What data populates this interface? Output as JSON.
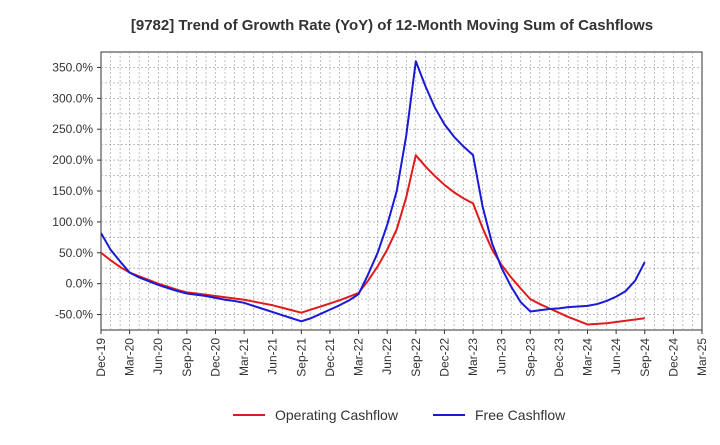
{
  "chart_data": {
    "type": "line",
    "title": "[9782]  Trend of Growth Rate (YoY) of 12-Month Moving Sum of Cashflows",
    "xlabel": "",
    "ylabel": "",
    "categories": [
      "Dec-19",
      "Jan-20",
      "Feb-20",
      "Mar-20",
      "Apr-20",
      "May-20",
      "Jun-20",
      "Jul-20",
      "Aug-20",
      "Sep-20",
      "Oct-20",
      "Nov-20",
      "Dec-20",
      "Jan-21",
      "Feb-21",
      "Mar-21",
      "Apr-21",
      "May-21",
      "Jun-21",
      "Jul-21",
      "Aug-21",
      "Sep-21",
      "Oct-21",
      "Nov-21",
      "Dec-21",
      "Jan-22",
      "Feb-22",
      "Mar-22",
      "Apr-22",
      "May-22",
      "Jun-22",
      "Jul-22",
      "Aug-22",
      "Sep-22",
      "Oct-22",
      "Nov-22",
      "Dec-22",
      "Jan-23",
      "Feb-23",
      "Mar-23",
      "Apr-23",
      "May-23",
      "Jun-23",
      "Jul-23",
      "Aug-23",
      "Sep-23",
      "Oct-23",
      "Nov-23",
      "Dec-23",
      "Jan-24",
      "Feb-24",
      "Mar-24",
      "Apr-24",
      "May-24",
      "Jun-24",
      "Jul-24",
      "Aug-24",
      "Sep-24",
      "Oct-24",
      "Nov-24",
      "Dec-24",
      "Jan-25",
      "Feb-25",
      "Mar-25"
    ],
    "x_tick_labels": [
      "Dec-19",
      "Mar-20",
      "Jun-20",
      "Sep-20",
      "Dec-20",
      "Mar-21",
      "Jun-21",
      "Sep-21",
      "Dec-21",
      "Mar-22",
      "Jun-22",
      "Sep-22",
      "Dec-22",
      "Mar-23",
      "Jun-23",
      "Sep-23",
      "Dec-23",
      "Mar-24",
      "Jun-24",
      "Sep-24",
      "Dec-24",
      "Mar-25"
    ],
    "y_tick_labels": [
      "-50.0%",
      "0.0%",
      "50.0%",
      "100.0%",
      "150.0%",
      "200.0%",
      "250.0%",
      "300.0%",
      "350.0%"
    ],
    "y_ticks": [
      -50,
      0,
      50,
      100,
      150,
      200,
      250,
      300,
      350
    ],
    "ylim": [
      -75,
      375
    ],
    "grid": true,
    "legend_position": "bottom",
    "series": [
      {
        "name": "Operating Cashflow",
        "color": "#e31a1c",
        "values": [
          50,
          38,
          27,
          18,
          12,
          6,
          0,
          -5,
          -10,
          -14,
          -16,
          -18,
          -20,
          -22,
          -24,
          -26,
          -29,
          -32,
          -35,
          -39,
          -43,
          -47,
          -42,
          -37,
          -32,
          -27,
          -21,
          -15,
          5,
          28,
          55,
          88,
          140,
          208,
          190,
          174,
          160,
          148,
          138,
          130,
          90,
          55,
          30,
          10,
          -8,
          -25,
          -33,
          -40,
          -47,
          -54,
          -60,
          -66,
          -65,
          -64,
          -62,
          -60,
          -58,
          -56,
          null,
          null,
          null,
          null,
          null,
          null
        ]
      },
      {
        "name": "Free Cashflow",
        "color": "#1a1ad6",
        "values": [
          82,
          55,
          36,
          18,
          10,
          4,
          -2,
          -7,
          -12,
          -16,
          -18,
          -20,
          -23,
          -26,
          -28,
          -31,
          -36,
          -41,
          -46,
          -51,
          -56,
          -61,
          -56,
          -49,
          -42,
          -35,
          -27,
          -17,
          15,
          50,
          95,
          150,
          240,
          360,
          320,
          285,
          258,
          238,
          222,
          208,
          125,
          65,
          25,
          -5,
          -30,
          -45,
          -43,
          -41,
          -40,
          -38,
          -37,
          -36,
          -33,
          -28,
          -21,
          -12,
          5,
          35,
          null,
          null,
          null,
          null,
          null,
          null
        ]
      }
    ]
  }
}
